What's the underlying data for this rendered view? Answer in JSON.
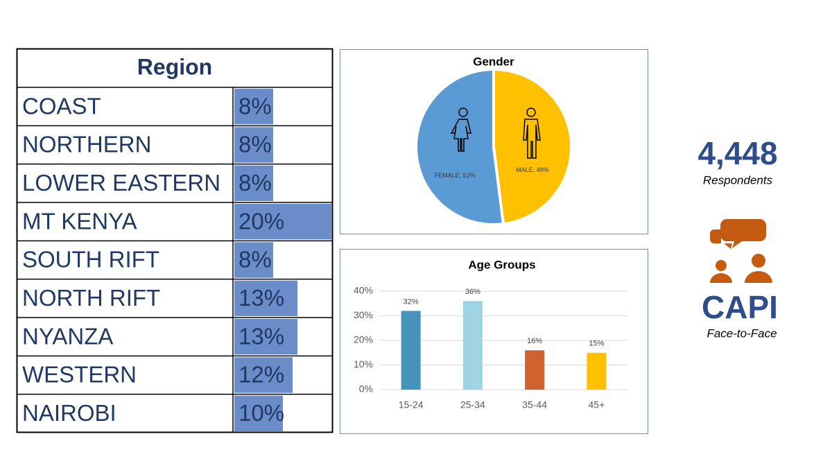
{
  "chart_data": [
    {
      "type": "databar-table",
      "title": "Region",
      "categories": [
        "COAST",
        "NORTHERN",
        "LOWER EASTERN",
        "MT KENYA",
        "SOUTH RIFT",
        "NORTH RIFT",
        "NYANZA",
        "WESTERN",
        "NAIROBI"
      ],
      "values": [
        8,
        8,
        8,
        20,
        8,
        13,
        13,
        12,
        10
      ],
      "value_labels": [
        "8%",
        "8%",
        "8%",
        "20%",
        "8%",
        "13%",
        "13%",
        "12%",
        "10%"
      ],
      "xlim": [
        0,
        20
      ],
      "color": "#6a8cc8"
    },
    {
      "type": "pie",
      "title": "Gender",
      "categories": [
        "FEMALE",
        "MALE"
      ],
      "values": [
        52,
        48
      ],
      "value_labels": [
        "FEMALE, 52%",
        "MALE, 48%"
      ],
      "colors": [
        "#5b9bd5",
        "#ffc000"
      ]
    },
    {
      "type": "bar",
      "title": "Age Groups",
      "categories": [
        "15-24",
        "25-34",
        "35-44",
        "45+"
      ],
      "values": [
        32,
        36,
        16,
        15
      ],
      "value_labels": [
        "32%",
        "36%",
        "16%",
        "15%"
      ],
      "colors": [
        "#4494bb",
        "#9fd4e5",
        "#d0622f",
        "#ffc000"
      ],
      "ylim": [
        0,
        40
      ],
      "yticks": [
        {
          "value": 0,
          "label": "0%"
        },
        {
          "value": 10,
          "label": "10%"
        },
        {
          "value": 20,
          "label": "20%"
        },
        {
          "value": 30,
          "label": "30%"
        },
        {
          "value": 40,
          "label": "40%"
        }
      ],
      "grid": true
    }
  ],
  "stats": {
    "respondents": "4,448",
    "respondents_label": "Respondents",
    "method": "CAPI",
    "method_label": "Face-to-Face"
  }
}
